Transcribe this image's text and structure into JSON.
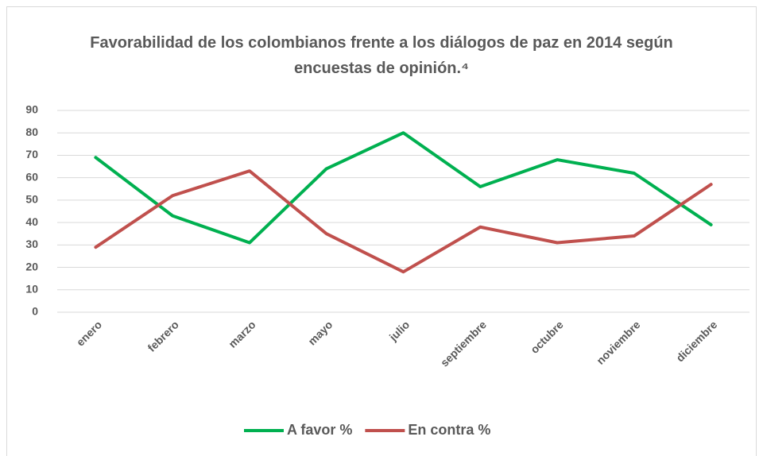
{
  "chart_data": {
    "type": "line",
    "title": "Favorabilidad de los colombianos frente a los diálogos de paz en 2014 según encuestas de opinión.⁴",
    "categories": [
      "enero",
      "febrero",
      "marzo",
      "mayo",
      "julio",
      "septiembre",
      "octubre",
      "noviembre",
      "diciembre"
    ],
    "series": [
      {
        "name": "A favor %",
        "color": "#00b050",
        "values": [
          69,
          43,
          31,
          64,
          80,
          56,
          68,
          62,
          39
        ]
      },
      {
        "name": "En contra %",
        "color": "#c0504d",
        "values": [
          29,
          52,
          63,
          35,
          18,
          38,
          31,
          34,
          57
        ]
      }
    ],
    "ylim": [
      0,
      90
    ],
    "yticks": [
      0,
      10,
      20,
      30,
      40,
      50,
      60,
      70,
      80,
      90
    ],
    "grid": true,
    "legend": "bottom"
  }
}
